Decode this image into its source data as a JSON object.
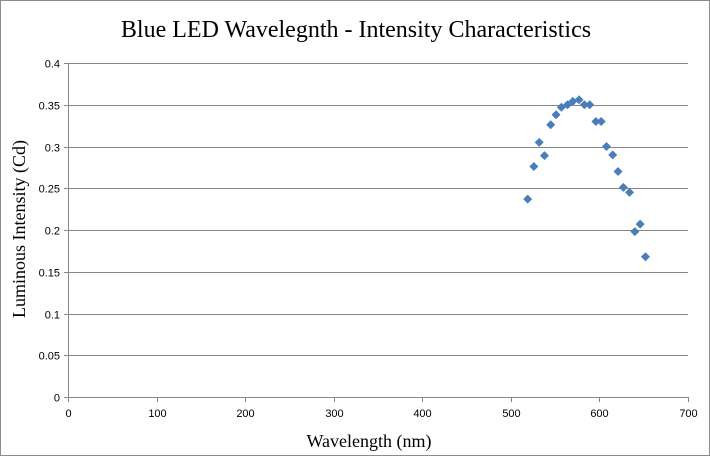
{
  "chart_data": {
    "type": "scatter",
    "title": "Blue LED Wavelegnth - Intensity Characteristics",
    "xlabel": "Wavelength (nm)",
    "ylabel": "Luminous Intensity (Cd)",
    "xlim": [
      0,
      700
    ],
    "ylim": [
      0,
      0.4
    ],
    "xticks": [
      0,
      100,
      200,
      300,
      400,
      500,
      600,
      700
    ],
    "yticks": [
      0,
      0.05,
      0.1,
      0.15,
      0.2,
      0.25,
      0.3,
      0.35,
      0.4
    ],
    "xtick_labels": [
      "0",
      "100",
      "200",
      "300",
      "400",
      "500",
      "600",
      "700"
    ],
    "ytick_labels": [
      "0",
      "0.05",
      "0.1",
      "0.15",
      "0.2",
      "0.25",
      "0.3",
      "0.35",
      "0.4"
    ],
    "grid": {
      "horizontal": true,
      "vertical": false
    },
    "legend": "none",
    "marker": "diamond",
    "marker_color": "#4a7ebb",
    "series": [
      {
        "x": [
          519,
          526,
          532,
          538,
          545,
          551,
          557,
          564,
          570,
          577,
          583,
          589,
          596,
          602,
          608,
          615,
          621,
          627,
          634,
          640,
          646,
          652
        ],
        "y": [
          0.237,
          0.276,
          0.305,
          0.289,
          0.326,
          0.338,
          0.347,
          0.35,
          0.354,
          0.356,
          0.35,
          0.35,
          0.33,
          0.33,
          0.3,
          0.29,
          0.27,
          0.251,
          0.245,
          0.198,
          0.207,
          0.168
        ]
      }
    ]
  }
}
